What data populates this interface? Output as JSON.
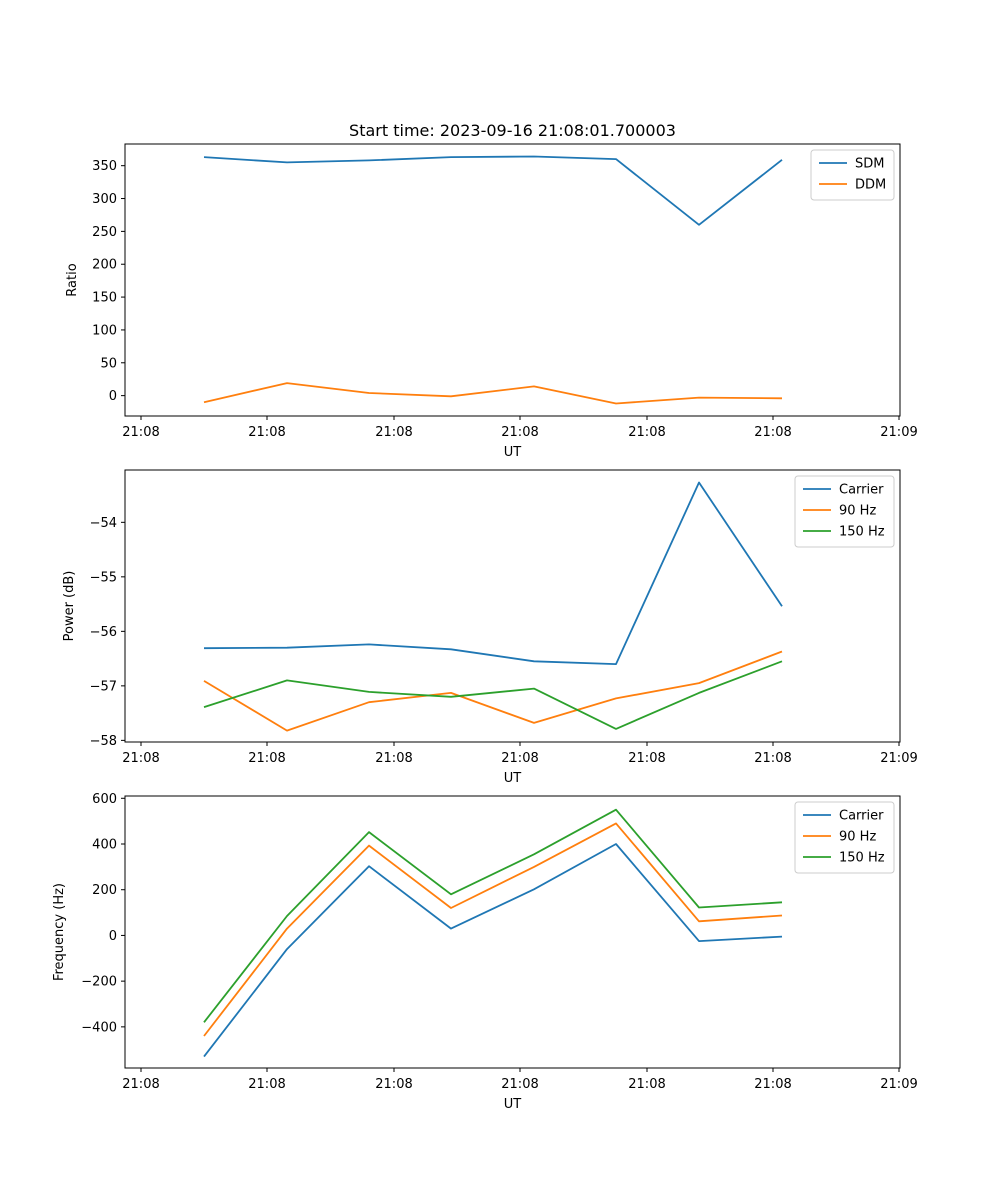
{
  "figure_title": "Start time: 2023-09-16 21:08:01.700003",
  "colors": {
    "blue": "#1f77b4",
    "orange": "#ff7f0e",
    "green": "#2ca02c"
  },
  "chart_data": [
    {
      "type": "line",
      "title": "Start time: 2023-09-16 21:08:01.700003",
      "xlabel": "UT",
      "ylabel": "Ratio",
      "x_tick_labels": [
        "21:08",
        "21:08",
        "21:08",
        "21:08",
        "21:08",
        "21:08",
        "21:09"
      ],
      "ylim": [
        -31,
        383
      ],
      "yticks": [
        0,
        50,
        100,
        150,
        200,
        250,
        300,
        350
      ],
      "y_tick_labels": [
        "0",
        "50",
        "100",
        "150",
        "200",
        "250",
        "300",
        "350"
      ],
      "legend_position": "top-right",
      "series": [
        {
          "name": "SDM",
          "color": "#1f77b4",
          "values": [
            363,
            355,
            358,
            363,
            364,
            360,
            260,
            359
          ]
        },
        {
          "name": "DDM",
          "color": "#ff7f0e",
          "values": [
            -10,
            19,
            4,
            -1,
            14,
            -12,
            -3,
            -4
          ]
        }
      ]
    },
    {
      "type": "line",
      "title": "",
      "xlabel": "UT",
      "ylabel": "Power (dB)",
      "x_tick_labels": [
        "21:08",
        "21:08",
        "21:08",
        "21:08",
        "21:08",
        "21:08",
        "21:09"
      ],
      "ylim": [
        -58.03,
        -53.04
      ],
      "yticks": [
        -58,
        -57,
        -56,
        -55,
        -54
      ],
      "y_tick_labels": [
        "−58",
        "−57",
        "−56",
        "−55",
        "−54"
      ],
      "legend_position": "top-right",
      "series": [
        {
          "name": "Carrier",
          "color": "#1f77b4",
          "values": [
            -56.31,
            -56.3,
            -56.24,
            -56.33,
            -56.55,
            -56.6,
            -53.27,
            -55.54
          ]
        },
        {
          "name": "90 Hz",
          "color": "#ff7f0e",
          "values": [
            -56.91,
            -57.82,
            -57.3,
            -57.13,
            -57.68,
            -57.23,
            -56.95,
            -56.37
          ]
        },
        {
          "name": "150 Hz",
          "color": "#2ca02c",
          "values": [
            -57.39,
            -56.9,
            -57.11,
            -57.2,
            -57.05,
            -57.79,
            -57.13,
            -56.55
          ]
        }
      ]
    },
    {
      "type": "line",
      "title": "",
      "xlabel": "UT",
      "ylabel": "Frequency (Hz)",
      "x_tick_labels": [
        "21:08",
        "21:08",
        "21:08",
        "21:08",
        "21:08",
        "21:08",
        "21:09"
      ],
      "ylim": [
        -580,
        610
      ],
      "yticks": [
        -400,
        -200,
        0,
        200,
        400,
        600
      ],
      "y_tick_labels": [
        "−400",
        "−200",
        "0",
        "200",
        "400",
        "600"
      ],
      "legend_position": "top-right",
      "series": [
        {
          "name": "Carrier",
          "color": "#1f77b4",
          "values": [
            -530,
            -60,
            303,
            30,
            202,
            400,
            -25,
            -5
          ]
        },
        {
          "name": "90 Hz",
          "color": "#ff7f0e",
          "values": [
            -440,
            30,
            393,
            120,
            300,
            490,
            62,
            87
          ]
        },
        {
          "name": "150 Hz",
          "color": "#2ca02c",
          "values": [
            -380,
            85,
            452,
            180,
            355,
            550,
            122,
            145
          ]
        }
      ]
    }
  ]
}
